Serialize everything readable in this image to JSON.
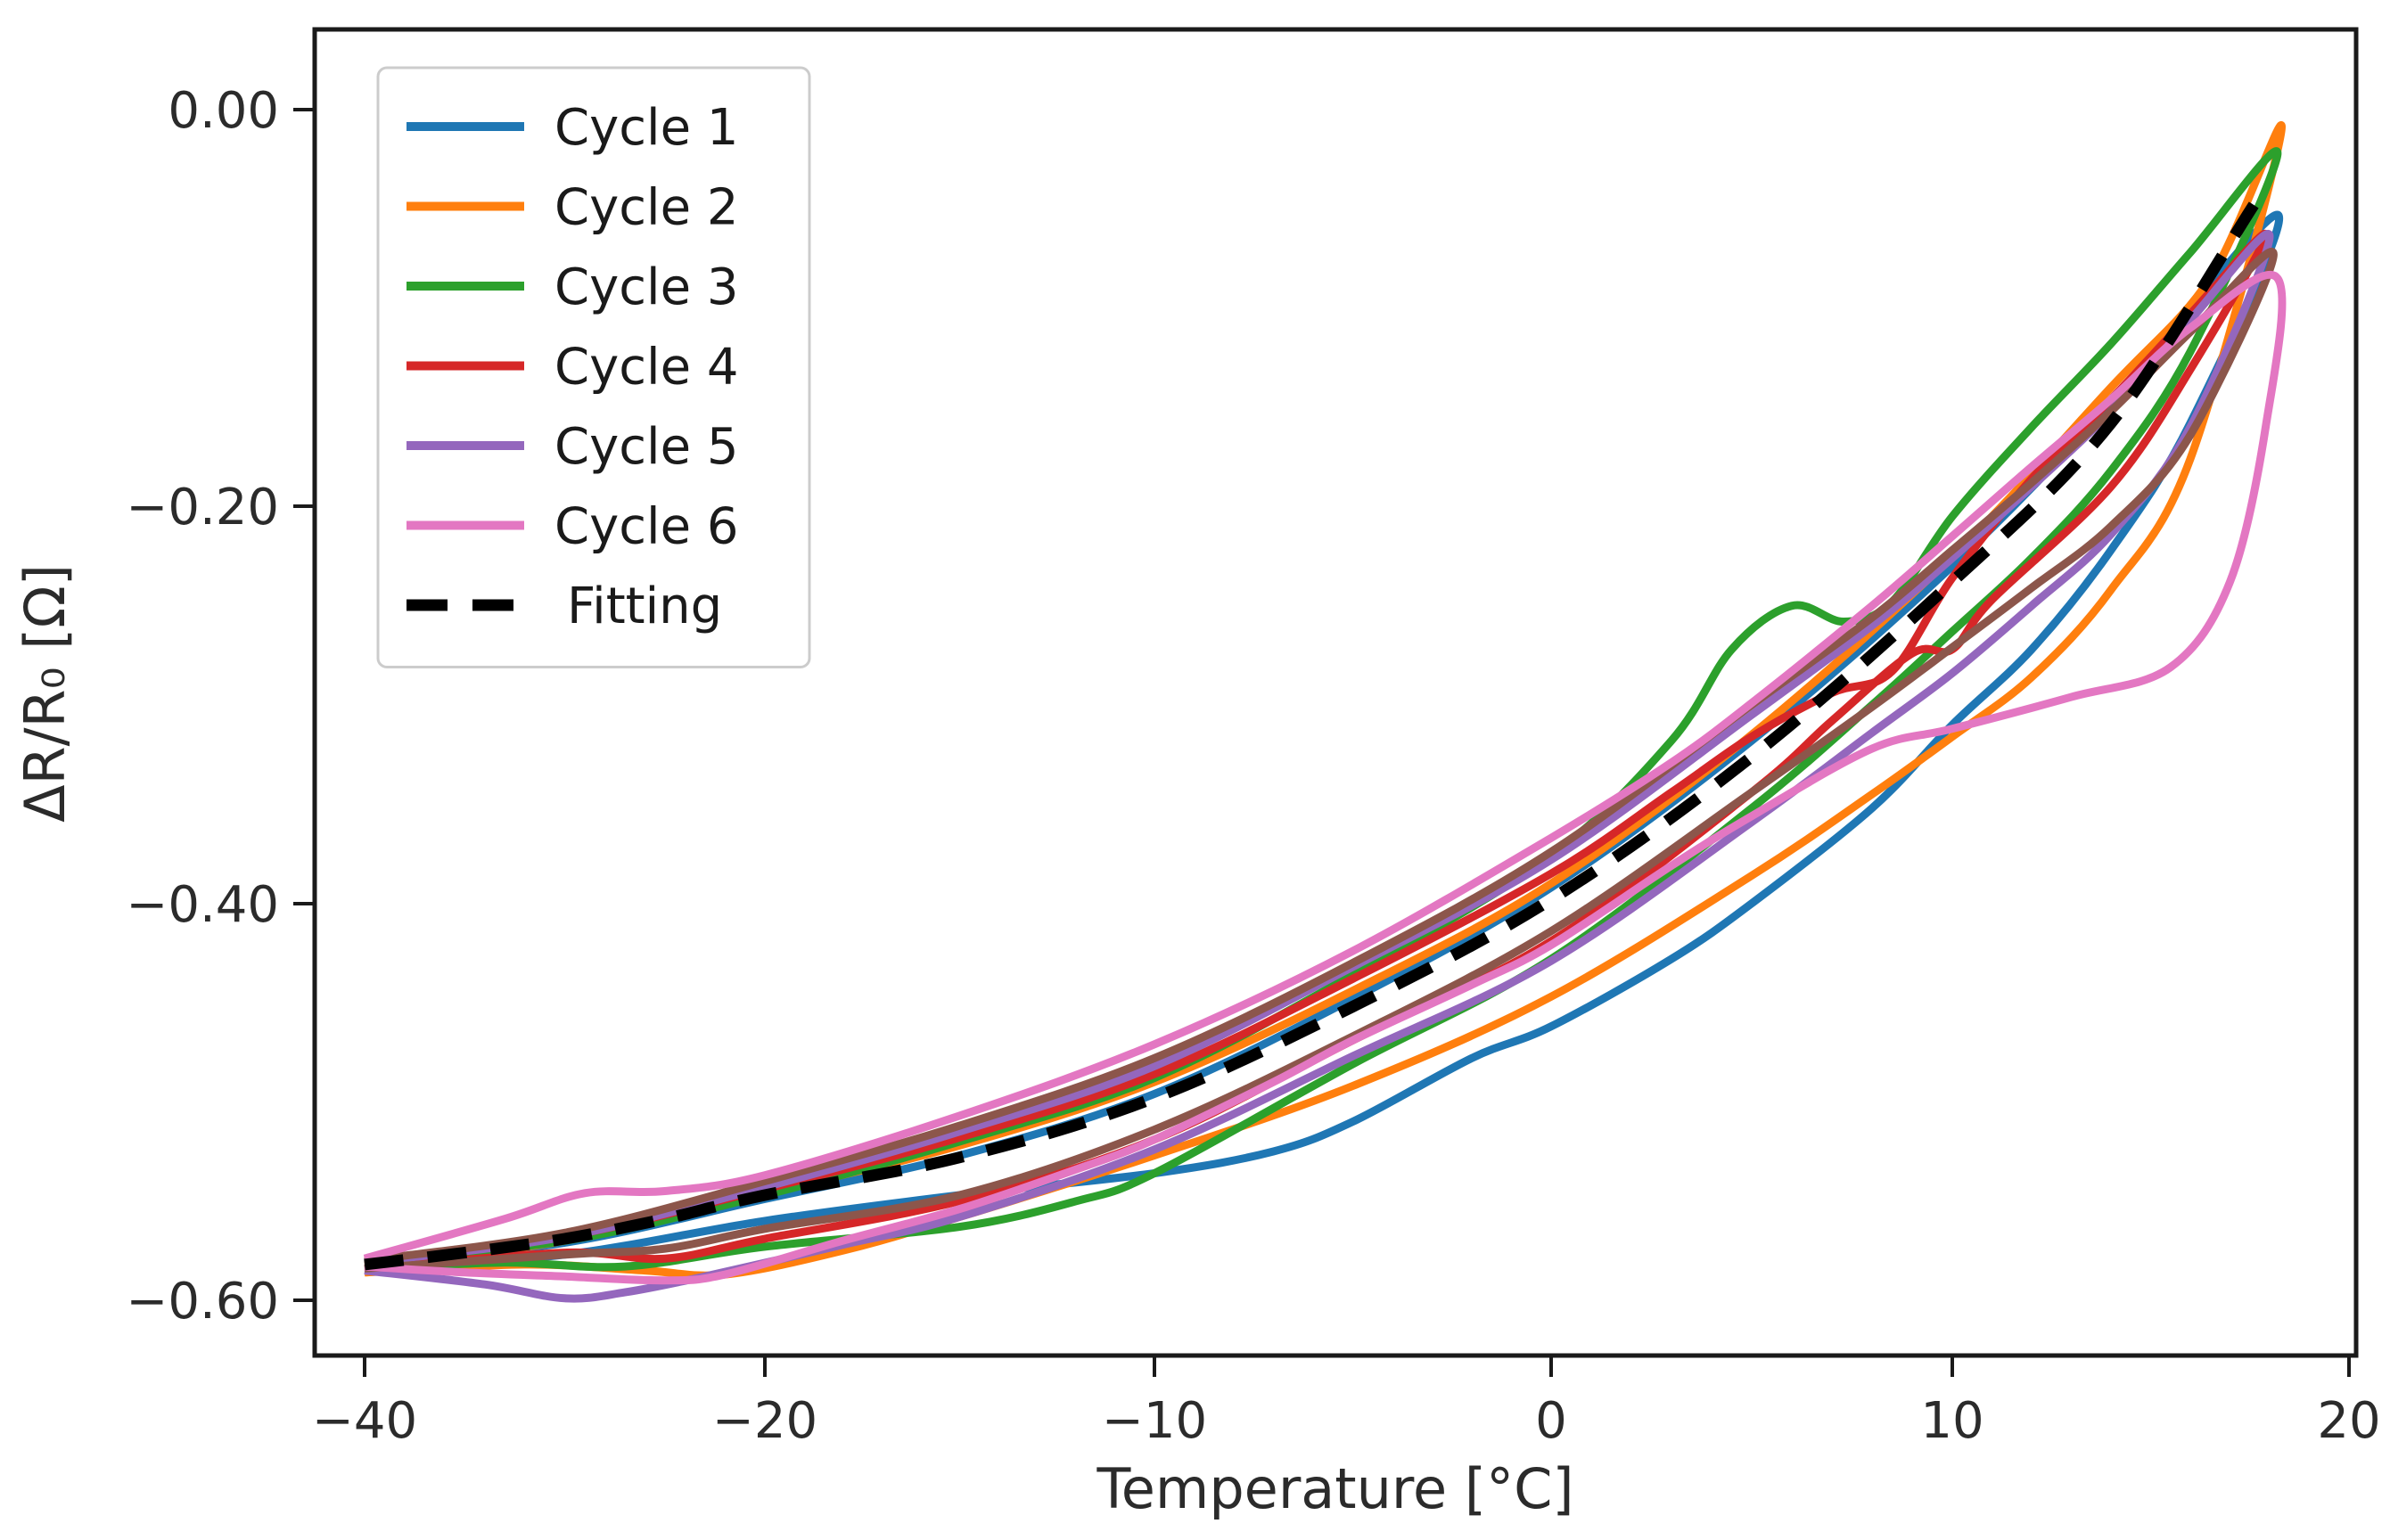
{
  "figure": {
    "background": "#ffffff"
  },
  "chart_data": {
    "type": "line",
    "title": "",
    "xlabel": "Temperature [°C]",
    "ylabel": "ΔR/R₀ [Ω]",
    "grid": false,
    "legend_position": "upper left",
    "x_tick_values": [
      -40,
      -20,
      -10,
      0,
      10,
      20
    ],
    "x_tick_labels": [
      "−40",
      "−20",
      "−10",
      "0",
      "10",
      "20"
    ],
    "x_axis_note": "ticks approximately evenly spaced in pixels despite unequal value steps",
    "y_tick_values": [
      0.0,
      -0.2,
      -0.4,
      -0.6
    ],
    "y_tick_labels": [
      "0.00",
      "−0.20",
      "−0.40",
      "−0.60"
    ],
    "x_range_shown": [
      -41.5,
      20.2
    ],
    "y_range_shown": [
      -0.655,
      0.04
    ],
    "series": [
      {
        "name": "Cycle 1",
        "color": "#1f77b4",
        "style": "solid",
        "in_legend": true,
        "loop": {
          "up": [
            [
              -40,
              -0.581
            ],
            [
              -30,
              -0.571
            ],
            [
              -20,
              -0.549
            ],
            [
              -15,
              -0.527
            ],
            [
              -10,
              -0.496
            ],
            [
              -5,
              -0.448
            ],
            [
              0,
              -0.392
            ],
            [
              5,
              -0.318
            ],
            [
              10,
              -0.23
            ],
            [
              14,
              -0.148
            ],
            [
              18.2,
              -0.053
            ]
          ],
          "down": [
            [
              -40,
              -0.584
            ],
            [
              -30,
              -0.577
            ],
            [
              -20,
              -0.56
            ],
            [
              -15,
              -0.547
            ],
            [
              -10,
              -0.536
            ],
            [
              -7,
              -0.525
            ],
            [
              -5,
              -0.51
            ],
            [
              -2,
              -0.478
            ],
            [
              0,
              -0.462
            ],
            [
              3,
              -0.428
            ],
            [
              5,
              -0.4
            ],
            [
              8,
              -0.352
            ],
            [
              10,
              -0.31
            ],
            [
              12,
              -0.272
            ],
            [
              14,
              -0.222
            ],
            [
              16,
              -0.158
            ],
            [
              18.2,
              -0.053
            ]
          ]
        }
      },
      {
        "name": "Cycle 2",
        "color": "#ff7f0e",
        "style": "solid",
        "in_legend": true,
        "loop": {
          "up": [
            [
              -40,
              -0.582
            ],
            [
              -30,
              -0.57
            ],
            [
              -20,
              -0.546
            ],
            [
              -15,
              -0.522
            ],
            [
              -10,
              -0.49
            ],
            [
              -5,
              -0.444
            ],
            [
              0,
              -0.39
            ],
            [
              5,
              -0.315
            ],
            [
              10,
              -0.225
            ],
            [
              14,
              -0.14
            ],
            [
              16.5,
              -0.085
            ],
            [
              18.3,
              -0.01
            ]
          ],
          "down": [
            [
              -40,
              -0.586
            ],
            [
              -32,
              -0.582
            ],
            [
              -26,
              -0.585
            ],
            [
              -22,
              -0.587
            ],
            [
              -18,
              -0.575
            ],
            [
              -15,
              -0.558
            ],
            [
              -10,
              -0.527
            ],
            [
              -5,
              -0.492
            ],
            [
              0,
              -0.447
            ],
            [
              5,
              -0.386
            ],
            [
              8,
              -0.345
            ],
            [
              10,
              -0.316
            ],
            [
              12,
              -0.286
            ],
            [
              14,
              -0.242
            ],
            [
              16,
              -0.176
            ],
            [
              18.3,
              -0.01
            ]
          ]
        }
      },
      {
        "name": "Cycle 3",
        "color": "#2ca02c",
        "style": "solid",
        "in_legend": true,
        "loop": {
          "up": [
            [
              -40,
              -0.58
            ],
            [
              -30,
              -0.57
            ],
            [
              -20,
              -0.547
            ],
            [
              -15,
              -0.52
            ],
            [
              -10,
              -0.488
            ],
            [
              -5,
              -0.436
            ],
            [
              0,
              -0.376
            ],
            [
              3,
              -0.318
            ],
            [
              4.5,
              -0.272
            ],
            [
              6,
              -0.25
            ],
            [
              7.3,
              -0.258
            ],
            [
              8.5,
              -0.248
            ],
            [
              10,
              -0.205
            ],
            [
              12,
              -0.16
            ],
            [
              14,
              -0.118
            ],
            [
              16,
              -0.072
            ],
            [
              18.2,
              -0.022
            ]
          ],
          "down": [
            [
              -40,
              -0.584
            ],
            [
              -33,
              -0.581
            ],
            [
              -27,
              -0.583
            ],
            [
              -20,
              -0.573
            ],
            [
              -15,
              -0.563
            ],
            [
              -12,
              -0.55
            ],
            [
              -10,
              -0.536
            ],
            [
              -5,
              -0.481
            ],
            [
              0,
              -0.428
            ],
            [
              5,
              -0.352
            ],
            [
              8,
              -0.3
            ],
            [
              10,
              -0.263
            ],
            [
              12,
              -0.226
            ],
            [
              14,
              -0.182
            ],
            [
              16,
              -0.122
            ],
            [
              18.2,
              -0.022
            ]
          ]
        }
      },
      {
        "name": "Cycle 4",
        "color": "#d62728",
        "style": "solid",
        "in_legend": true,
        "loop": {
          "up": [
            [
              -40,
              -0.58
            ],
            [
              -30,
              -0.568
            ],
            [
              -20,
              -0.544
            ],
            [
              -15,
              -0.518
            ],
            [
              -10,
              -0.486
            ],
            [
              -5,
              -0.438
            ],
            [
              0,
              -0.385
            ],
            [
              3,
              -0.344
            ],
            [
              5,
              -0.316
            ],
            [
              7,
              -0.294
            ],
            [
              8.5,
              -0.283
            ],
            [
              10,
              -0.236
            ],
            [
              12,
              -0.186
            ],
            [
              14,
              -0.146
            ],
            [
              16,
              -0.103
            ],
            [
              17.9,
              -0.063
            ]
          ],
          "down": [
            [
              -40,
              -0.584
            ],
            [
              -30,
              -0.576
            ],
            [
              -25,
              -0.579
            ],
            [
              -20,
              -0.569
            ],
            [
              -15,
              -0.55
            ],
            [
              -10,
              -0.519
            ],
            [
              -5,
              -0.469
            ],
            [
              0,
              -0.419
            ],
            [
              5,
              -0.344
            ],
            [
              7,
              -0.308
            ],
            [
              9,
              -0.274
            ],
            [
              10,
              -0.272
            ],
            [
              11,
              -0.247
            ],
            [
              14,
              -0.19
            ],
            [
              16,
              -0.131
            ],
            [
              17.9,
              -0.063
            ]
          ]
        }
      },
      {
        "name": "Cycle 5",
        "color": "#9467bd",
        "style": "solid",
        "in_legend": true,
        "loop": {
          "up": [
            [
              -40,
              -0.581
            ],
            [
              -30,
              -0.568
            ],
            [
              -20,
              -0.543
            ],
            [
              -15,
              -0.515
            ],
            [
              -10,
              -0.482
            ],
            [
              -5,
              -0.432
            ],
            [
              0,
              -0.378
            ],
            [
              5,
              -0.305
            ],
            [
              8,
              -0.26
            ],
            [
              10,
              -0.226
            ],
            [
              12,
              -0.19
            ],
            [
              14,
              -0.152
            ],
            [
              16,
              -0.106
            ],
            [
              18,
              -0.064
            ]
          ],
          "down": [
            [
              -40,
              -0.585
            ],
            [
              -34,
              -0.592
            ],
            [
              -30,
              -0.599
            ],
            [
              -27,
              -0.596
            ],
            [
              -23,
              -0.588
            ],
            [
              -18,
              -0.572
            ],
            [
              -15,
              -0.558
            ],
            [
              -10,
              -0.524
            ],
            [
              -5,
              -0.477
            ],
            [
              0,
              -0.429
            ],
            [
              5,
              -0.359
            ],
            [
              8,
              -0.314
            ],
            [
              10,
              -0.284
            ],
            [
              12,
              -0.25
            ],
            [
              14,
              -0.214
            ],
            [
              16,
              -0.16
            ],
            [
              18,
              -0.064
            ]
          ]
        }
      },
      {
        "name": "unlabeled",
        "color": "#8c564b",
        "style": "solid",
        "in_legend": false,
        "loop": {
          "up": [
            [
              -40,
              -0.58
            ],
            [
              -30,
              -0.566
            ],
            [
              -20,
              -0.54
            ],
            [
              -15,
              -0.512
            ],
            [
              -10,
              -0.478
            ],
            [
              -5,
              -0.43
            ],
            [
              0,
              -0.374
            ],
            [
              5,
              -0.3
            ],
            [
              8,
              -0.256
            ],
            [
              10,
              -0.222
            ],
            [
              12,
              -0.188
            ],
            [
              14,
              -0.152
            ],
            [
              16,
              -0.112
            ],
            [
              18.1,
              -0.073
            ]
          ],
          "down": [
            [
              -40,
              -0.584
            ],
            [
              -30,
              -0.577
            ],
            [
              -25,
              -0.574
            ],
            [
              -20,
              -0.564
            ],
            [
              -15,
              -0.547
            ],
            [
              -10,
              -0.514
            ],
            [
              -5,
              -0.467
            ],
            [
              0,
              -0.414
            ],
            [
              5,
              -0.344
            ],
            [
              8,
              -0.301
            ],
            [
              10,
              -0.271
            ],
            [
              12,
              -0.241
            ],
            [
              14,
              -0.21
            ],
            [
              16,
              -0.164
            ],
            [
              18.1,
              -0.073
            ]
          ]
        }
      },
      {
        "name": "Cycle 6",
        "color": "#e377c2",
        "style": "solid",
        "in_legend": true,
        "loop": {
          "up": [
            [
              -40,
              -0.579
            ],
            [
              -33,
              -0.559
            ],
            [
              -29,
              -0.546
            ],
            [
              -25,
              -0.545
            ],
            [
              -20,
              -0.537
            ],
            [
              -15,
              -0.507
            ],
            [
              -10,
              -0.471
            ],
            [
              -5,
              -0.424
            ],
            [
              0,
              -0.367
            ],
            [
              3,
              -0.329
            ],
            [
              5,
              -0.299
            ],
            [
              8,
              -0.25
            ],
            [
              10,
              -0.215
            ],
            [
              12,
              -0.18
            ],
            [
              14,
              -0.146
            ],
            [
              16,
              -0.11
            ],
            [
              18.2,
              -0.085
            ]
          ],
          "down": [
            [
              -40,
              -0.583
            ],
            [
              -35,
              -0.586
            ],
            [
              -30,
              -0.588
            ],
            [
              -25,
              -0.59
            ],
            [
              -22,
              -0.587
            ],
            [
              -18,
              -0.57
            ],
            [
              -15,
              -0.554
            ],
            [
              -12,
              -0.534
            ],
            [
              -10,
              -0.519
            ],
            [
              -7,
              -0.49
            ],
            [
              -5,
              -0.469
            ],
            [
              -2,
              -0.441
            ],
            [
              0,
              -0.421
            ],
            [
              3,
              -0.381
            ],
            [
              5,
              -0.356
            ],
            [
              8,
              -0.322
            ],
            [
              10,
              -0.312
            ],
            [
              13,
              -0.296
            ],
            [
              15.5,
              -0.281
            ],
            [
              17,
              -0.238
            ],
            [
              17.9,
              -0.16
            ],
            [
              18.2,
              -0.085
            ]
          ]
        }
      },
      {
        "name": "Fitting",
        "color": "#000000",
        "style": "dashed",
        "in_legend": true,
        "points": [
          [
            -40,
            -0.582
          ],
          [
            -35,
            -0.576
          ],
          [
            -30,
            -0.569
          ],
          [
            -25,
            -0.559
          ],
          [
            -20,
            -0.547
          ],
          [
            -15,
            -0.528
          ],
          [
            -10,
            -0.498
          ],
          [
            -5,
            -0.452
          ],
          [
            0,
            -0.398
          ],
          [
            5,
            -0.326
          ],
          [
            10,
            -0.238
          ],
          [
            14,
            -0.158
          ],
          [
            17.6,
            -0.048
          ]
        ]
      }
    ]
  },
  "legend": {
    "entries": [
      {
        "label": "Cycle 1",
        "color": "#1f77b4",
        "dashed": false
      },
      {
        "label": "Cycle 2",
        "color": "#ff7f0e",
        "dashed": false
      },
      {
        "label": "Cycle 3",
        "color": "#2ca02c",
        "dashed": false
      },
      {
        "label": "Cycle 4",
        "color": "#d62728",
        "dashed": false
      },
      {
        "label": "Cycle 5",
        "color": "#9467bd",
        "dashed": false
      },
      {
        "label": "Cycle 6",
        "color": "#e377c2",
        "dashed": false
      },
      {
        "label": "Fitting",
        "color": "#000000",
        "dashed": true
      }
    ]
  }
}
